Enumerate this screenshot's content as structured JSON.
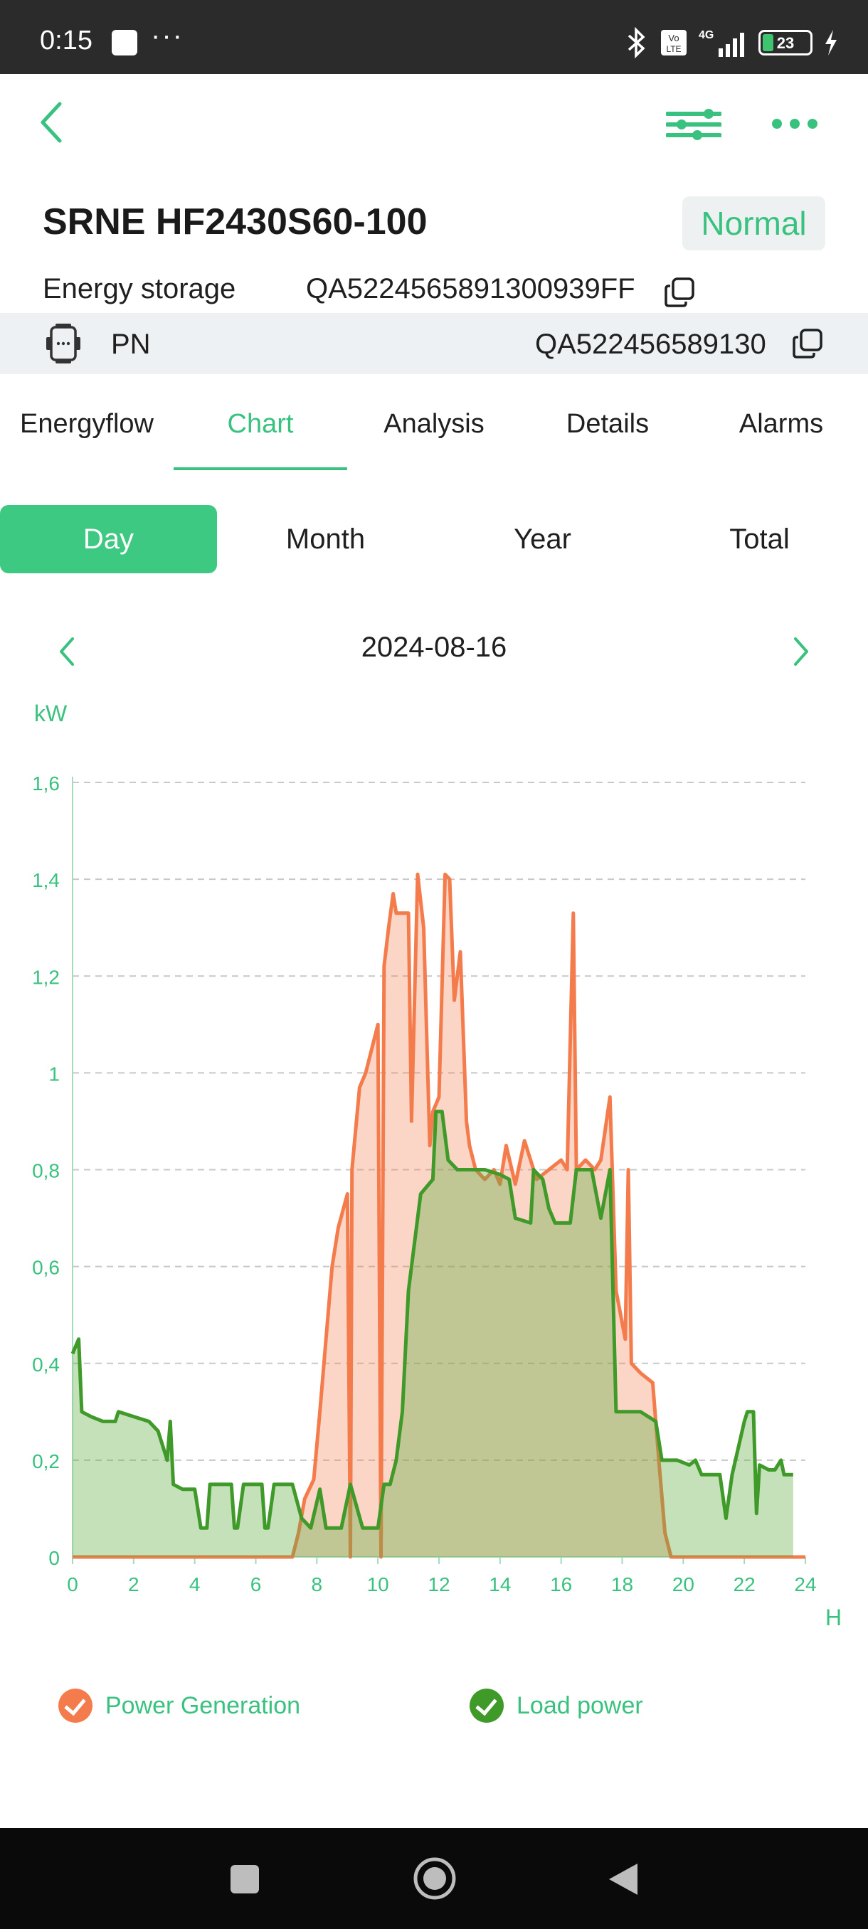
{
  "status_bar": {
    "time": "0:15",
    "dots": "···",
    "battery": "23",
    "network": "4G",
    "volte": "Vo LTE"
  },
  "header": {
    "back_icon": "chevron-left-icon",
    "settings_icon": "sliders-icon",
    "more_icon": "more-dots-icon"
  },
  "device": {
    "title": "SRNE HF2430S60-100",
    "status": "Normal",
    "type_label": "Energy storage",
    "serial": "QA5224565891300939FF",
    "pn_label": "PN",
    "pn_value": "QA522456589130"
  },
  "tabs": [
    "Energyflow",
    "Chart",
    "Analysis",
    "Details",
    "Alarms"
  ],
  "active_tab": "Chart",
  "periods": [
    "Day",
    "Month",
    "Year",
    "Total"
  ],
  "active_period": "Day",
  "date": "2024-08-16",
  "colors": {
    "accent": "#39c27f",
    "generation": "#f47c4c",
    "load": "#3f9a2a"
  },
  "chart_data": {
    "type": "area",
    "ylabel": "kW",
    "xlabel": "H",
    "xlim": [
      0,
      24
    ],
    "ylim": [
      0,
      1.6
    ],
    "x_ticks": [
      "0",
      "2",
      "4",
      "6",
      "8",
      "10",
      "12",
      "14",
      "16",
      "18",
      "20",
      "22",
      "24"
    ],
    "y_ticks": [
      "0",
      "0,2",
      "0,4",
      "0,6",
      "0,8",
      "1",
      "1,2",
      "1,4",
      "1,6"
    ],
    "grid": "horizontal dashed",
    "legend_position": "bottom",
    "series": [
      {
        "name": "Power Generation",
        "color": "#f47c4c",
        "points": [
          [
            0,
            0
          ],
          [
            7.2,
            0
          ],
          [
            7.4,
            0.05
          ],
          [
            7.6,
            0.12
          ],
          [
            7.9,
            0.16
          ],
          [
            8.1,
            0.3
          ],
          [
            8.3,
            0.45
          ],
          [
            8.5,
            0.6
          ],
          [
            8.7,
            0.68
          ],
          [
            9.0,
            0.75
          ],
          [
            9.1,
            0
          ],
          [
            9.15,
            0.8
          ],
          [
            9.4,
            0.97
          ],
          [
            9.6,
            1.0
          ],
          [
            9.8,
            1.05
          ],
          [
            10.0,
            1.1
          ],
          [
            10.1,
            0
          ],
          [
            10.2,
            1.22
          ],
          [
            10.35,
            1.3
          ],
          [
            10.5,
            1.37
          ],
          [
            10.6,
            1.33
          ],
          [
            10.8,
            1.33
          ],
          [
            11.0,
            1.33
          ],
          [
            11.1,
            0.9
          ],
          [
            11.3,
            1.41
          ],
          [
            11.5,
            1.3
          ],
          [
            11.7,
            0.85
          ],
          [
            11.8,
            0.92
          ],
          [
            12.0,
            0.95
          ],
          [
            12.2,
            1.41
          ],
          [
            12.35,
            1.4
          ],
          [
            12.5,
            1.15
          ],
          [
            12.7,
            1.25
          ],
          [
            12.9,
            0.9
          ],
          [
            13.0,
            0.85
          ],
          [
            13.2,
            0.8
          ],
          [
            13.5,
            0.78
          ],
          [
            13.8,
            0.8
          ],
          [
            14.0,
            0.77
          ],
          [
            14.2,
            0.85
          ],
          [
            14.5,
            0.77
          ],
          [
            14.8,
            0.86
          ],
          [
            15.2,
            0.78
          ],
          [
            15.6,
            0.8
          ],
          [
            16.0,
            0.82
          ],
          [
            16.2,
            0.8
          ],
          [
            16.4,
            1.33
          ],
          [
            16.5,
            0.8
          ],
          [
            16.8,
            0.82
          ],
          [
            17.1,
            0.8
          ],
          [
            17.3,
            0.82
          ],
          [
            17.6,
            0.95
          ],
          [
            17.8,
            0.55
          ],
          [
            18.1,
            0.45
          ],
          [
            18.2,
            0.8
          ],
          [
            18.3,
            0.4
          ],
          [
            18.6,
            0.38
          ],
          [
            19.0,
            0.36
          ],
          [
            19.2,
            0.2
          ],
          [
            19.4,
            0.05
          ],
          [
            19.6,
            0
          ],
          [
            24,
            0
          ]
        ]
      },
      {
        "name": "Load power",
        "color": "#3f9a2a",
        "points": [
          [
            0,
            0.42
          ],
          [
            0.2,
            0.45
          ],
          [
            0.3,
            0.3
          ],
          [
            0.6,
            0.29
          ],
          [
            1.0,
            0.28
          ],
          [
            1.4,
            0.28
          ],
          [
            1.5,
            0.3
          ],
          [
            2.0,
            0.29
          ],
          [
            2.5,
            0.28
          ],
          [
            2.8,
            0.26
          ],
          [
            3.1,
            0.2
          ],
          [
            3.2,
            0.28
          ],
          [
            3.3,
            0.15
          ],
          [
            3.6,
            0.14
          ],
          [
            4.0,
            0.14
          ],
          [
            4.2,
            0.06
          ],
          [
            4.4,
            0.06
          ],
          [
            4.5,
            0.15
          ],
          [
            5.2,
            0.15
          ],
          [
            5.3,
            0.06
          ],
          [
            5.4,
            0.06
          ],
          [
            5.6,
            0.15
          ],
          [
            6.2,
            0.15
          ],
          [
            6.3,
            0.06
          ],
          [
            6.4,
            0.06
          ],
          [
            6.6,
            0.15
          ],
          [
            7.2,
            0.15
          ],
          [
            7.5,
            0.08
          ],
          [
            7.8,
            0.06
          ],
          [
            8.1,
            0.14
          ],
          [
            8.3,
            0.06
          ],
          [
            8.8,
            0.06
          ],
          [
            9.1,
            0.15
          ],
          [
            9.5,
            0.06
          ],
          [
            10.0,
            0.06
          ],
          [
            10.2,
            0.15
          ],
          [
            10.4,
            0.15
          ],
          [
            10.6,
            0.2
          ],
          [
            10.8,
            0.3
          ],
          [
            11.0,
            0.55
          ],
          [
            11.1,
            0.6
          ],
          [
            11.4,
            0.75
          ],
          [
            11.8,
            0.78
          ],
          [
            11.9,
            0.92
          ],
          [
            12.1,
            0.92
          ],
          [
            12.3,
            0.82
          ],
          [
            12.6,
            0.8
          ],
          [
            13.0,
            0.8
          ],
          [
            13.5,
            0.8
          ],
          [
            14.0,
            0.79
          ],
          [
            14.3,
            0.78
          ],
          [
            14.5,
            0.7
          ],
          [
            15.0,
            0.69
          ],
          [
            15.1,
            0.8
          ],
          [
            15.4,
            0.78
          ],
          [
            15.6,
            0.72
          ],
          [
            15.8,
            0.69
          ],
          [
            16.3,
            0.69
          ],
          [
            16.5,
            0.8
          ],
          [
            17.0,
            0.8
          ],
          [
            17.3,
            0.7
          ],
          [
            17.6,
            0.8
          ],
          [
            17.8,
            0.3
          ],
          [
            18.1,
            0.3
          ],
          [
            18.6,
            0.3
          ],
          [
            19.1,
            0.28
          ],
          [
            19.3,
            0.2
          ],
          [
            19.8,
            0.2
          ],
          [
            20.2,
            0.19
          ],
          [
            20.4,
            0.2
          ],
          [
            20.6,
            0.17
          ],
          [
            21.0,
            0.17
          ],
          [
            21.2,
            0.17
          ],
          [
            21.4,
            0.08
          ],
          [
            21.6,
            0.17
          ],
          [
            22.0,
            0.28
          ],
          [
            22.1,
            0.3
          ],
          [
            22.3,
            0.3
          ],
          [
            22.4,
            0.09
          ],
          [
            22.5,
            0.19
          ],
          [
            22.8,
            0.18
          ],
          [
            23.0,
            0.18
          ],
          [
            23.2,
            0.2
          ],
          [
            23.3,
            0.17
          ],
          [
            23.6,
            0.17
          ]
        ]
      }
    ]
  }
}
